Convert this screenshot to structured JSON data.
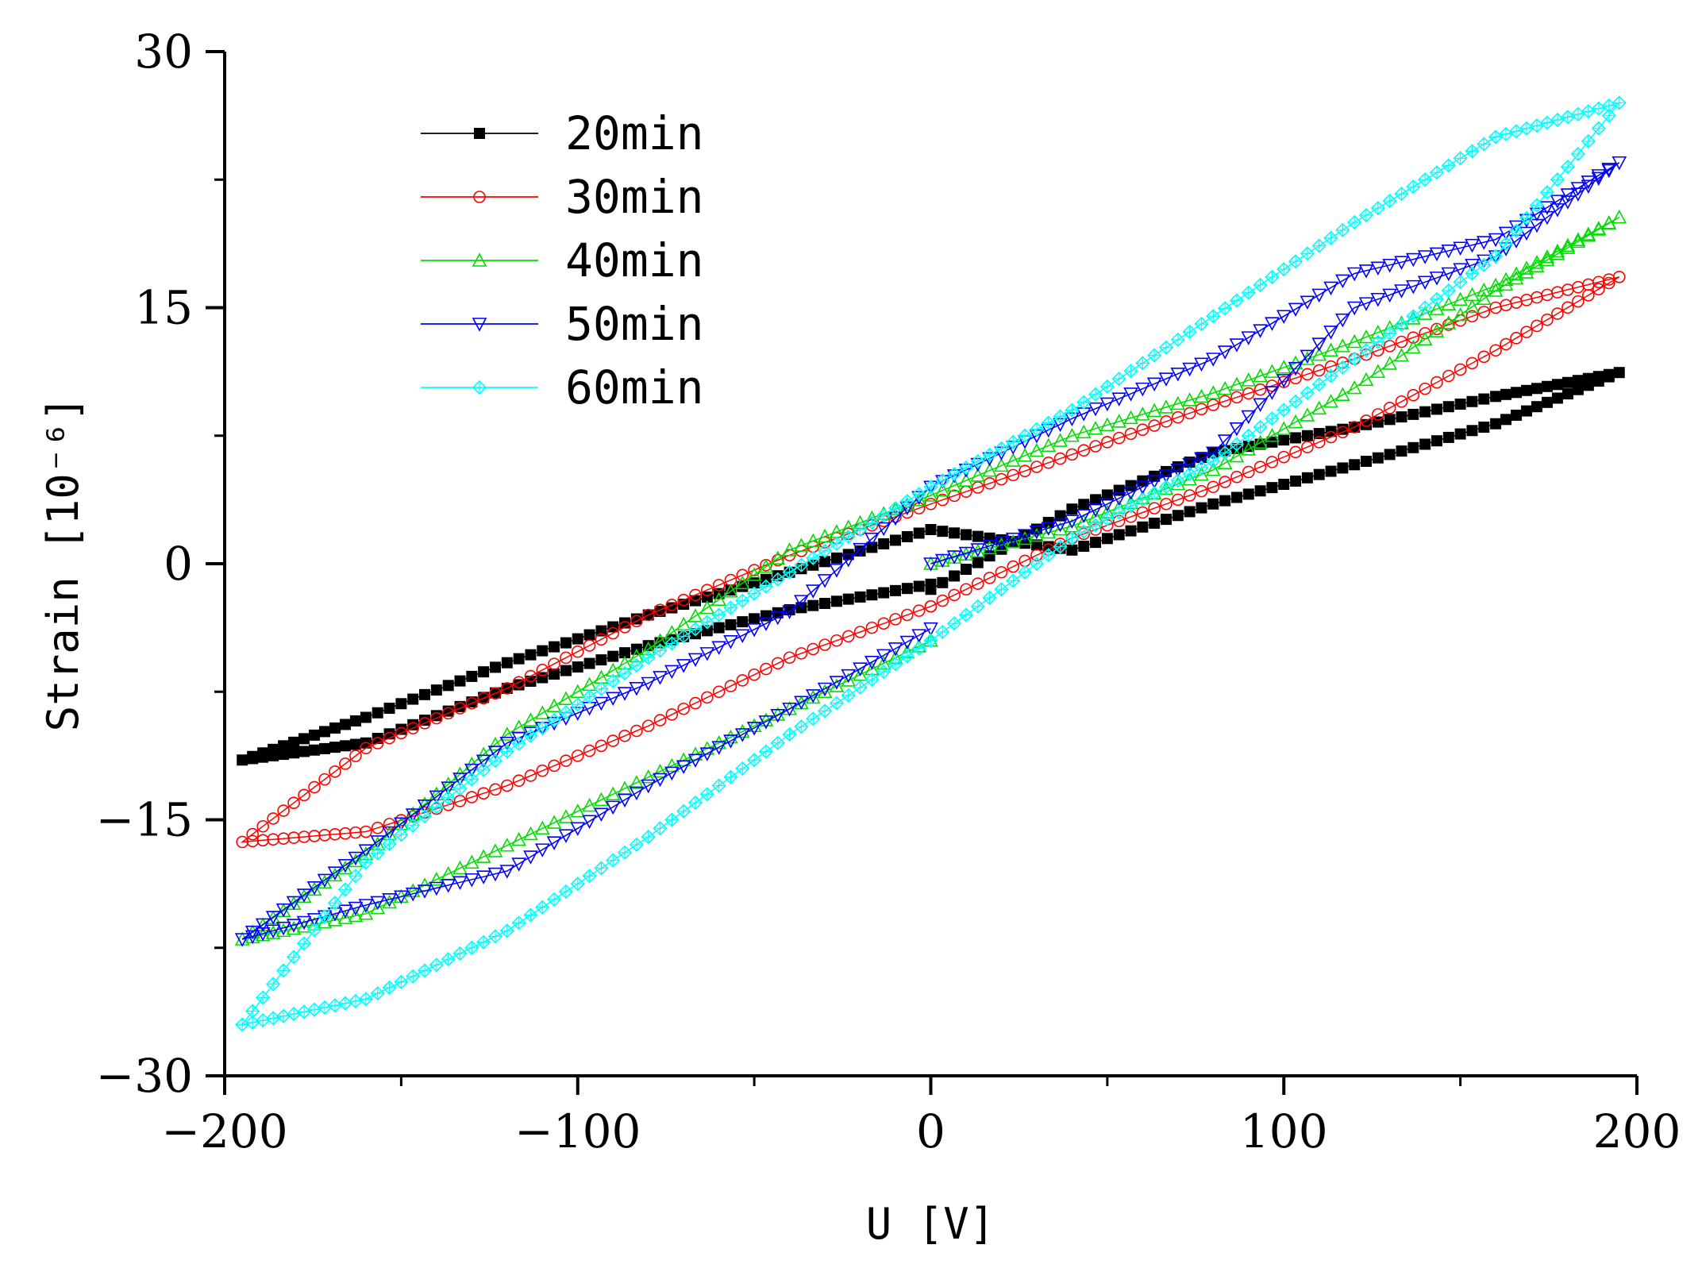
{
  "chart_data": {
    "type": "line",
    "title": "",
    "xlabel": "U [V]",
    "ylabel": "Strain [10⁻⁶]",
    "xlim": [
      -200,
      200
    ],
    "ylim": [
      -30,
      30
    ],
    "xticks": [
      -200,
      -100,
      0,
      100,
      200
    ],
    "yticks": [
      -30,
      -15,
      0,
      15,
      30
    ],
    "xtick_labels": [
      "−200",
      "−100",
      "0",
      "100",
      "200"
    ],
    "ytick_labels": [
      "−30",
      "−15",
      "0",
      "15",
      "30"
    ],
    "grid": false,
    "legend_position": "top-left",
    "series": [
      {
        "name": "20min",
        "color": "#000000",
        "marker": "square",
        "x": [
          0,
          40,
          80,
          120,
          160,
          195,
          160,
          120,
          80,
          40,
          0,
          -40,
          -80,
          -120,
          -160,
          -195,
          -160,
          -120,
          -80,
          -40,
          0
        ],
        "y": [
          -1.5,
          3.2,
          6.5,
          8.0,
          9.8,
          11.2,
          8.2,
          5.8,
          3.5,
          0.8,
          2.0,
          -0.5,
          -3.0,
          -5.8,
          -9.0,
          -11.5,
          -10.5,
          -7.3,
          -4.8,
          -2.7,
          -1.2
        ]
      },
      {
        "name": "30min",
        "color": "#ff0000",
        "marker": "circle",
        "x": [
          0,
          40,
          80,
          120,
          160,
          195,
          160,
          120,
          80,
          40,
          0,
          -40,
          -80,
          -120,
          -160,
          -195,
          -160,
          -120,
          -80,
          -40,
          0
        ],
        "y": [
          -2.5,
          1.5,
          4.5,
          8.0,
          12.5,
          16.8,
          15.0,
          12.0,
          9.3,
          6.4,
          3.5,
          0.5,
          -3.0,
          -7.3,
          -10.8,
          -16.3,
          -15.7,
          -13.0,
          -9.5,
          -5.5,
          -2.5
        ]
      },
      {
        "name": "40min",
        "color": "#00dd00",
        "marker": "triangle-up",
        "x": [
          0,
          40,
          80,
          120,
          160,
          195,
          160,
          120,
          80,
          40,
          0,
          -40,
          -80,
          -120,
          -160,
          -195,
          -160,
          -120,
          -80,
          -40,
          0
        ],
        "y": [
          0.0,
          2.2,
          5.5,
          10.3,
          16.0,
          20.3,
          16.3,
          13.0,
          10.0,
          7.5,
          4.0,
          0.8,
          -5.0,
          -10.0,
          -17.0,
          -22.0,
          -20.5,
          -16.5,
          -12.5,
          -8.5,
          -4.5
        ]
      },
      {
        "name": "50min",
        "color": "#0000ff",
        "marker": "triangle-down",
        "x": [
          0,
          40,
          80,
          120,
          160,
          195,
          160,
          120,
          80,
          40,
          0,
          -40,
          -80,
          -120,
          -160,
          -195,
          -160,
          -120,
          -80,
          -40,
          0
        ],
        "y": [
          0.0,
          2.5,
          6.5,
          15.0,
          18.0,
          23.5,
          19.0,
          17.0,
          12.0,
          8.5,
          4.5,
          -2.8,
          -7.0,
          -10.5,
          -16.8,
          -22.0,
          -20.0,
          -18.0,
          -13.0,
          -8.5,
          -3.8
        ]
      },
      {
        "name": "60min",
        "color": "#00ffff",
        "marker": "diamond",
        "x": [
          0,
          40,
          80,
          120,
          160,
          195,
          160,
          120,
          80,
          40,
          0,
          -40,
          -80,
          -120,
          -160,
          -195,
          -160,
          -120,
          -80,
          -40,
          0
        ],
        "y": [
          -4.5,
          1.5,
          6.0,
          12.0,
          18.0,
          27.0,
          25.0,
          20.0,
          14.5,
          9.0,
          4.5,
          -0.5,
          -5.5,
          -11.0,
          -17.5,
          -27.0,
          -25.5,
          -21.5,
          -16.0,
          -10.0,
          -4.5
        ]
      }
    ]
  }
}
